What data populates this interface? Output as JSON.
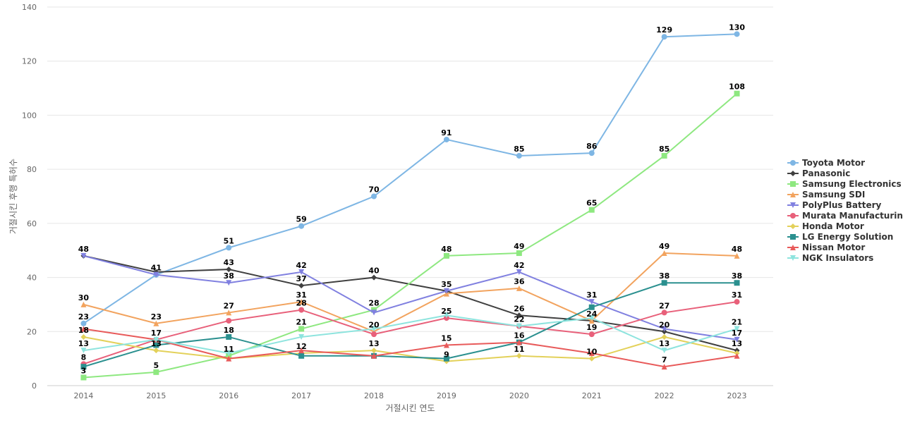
{
  "chart_data": {
    "type": "line",
    "title": "",
    "xlabel": "거절시킨 연도",
    "ylabel": "거절시킨 후행 특허수",
    "x": [
      "2014",
      "2015",
      "2016",
      "2017",
      "2018",
      "2019",
      "2020",
      "2021",
      "2022",
      "2023"
    ],
    "ylim": [
      0,
      140
    ],
    "yticks": [
      0,
      20,
      40,
      60,
      80,
      100,
      120,
      140
    ],
    "grid": true,
    "legend_position": "right",
    "series": [
      {
        "name": "Toyota Motor",
        "color": "#7eb6e4",
        "marker": "circle",
        "values": [
          23,
          41,
          51,
          59,
          70,
          91,
          85,
          86,
          129,
          130
        ]
      },
      {
        "name": "Panasonic",
        "color": "#404040",
        "marker": "diamond",
        "values": [
          48,
          42,
          43,
          37,
          40,
          35,
          26,
          24,
          20,
          13
        ]
      },
      {
        "name": "Samsung Electronics",
        "color": "#8ee880",
        "marker": "square",
        "values": [
          3,
          5,
          11,
          21,
          28,
          48,
          49,
          65,
          85,
          108
        ]
      },
      {
        "name": "Samsung SDI",
        "color": "#f2a35e",
        "marker": "triangle",
        "values": [
          30,
          23,
          27,
          31,
          20,
          34,
          36,
          24,
          49,
          48
        ]
      },
      {
        "name": "PolyPlus Battery",
        "color": "#8080e0",
        "marker": "triangle-down",
        "values": [
          48,
          41,
          38,
          42,
          27,
          35,
          42,
          31,
          21,
          17
        ]
      },
      {
        "name": "Murata Manufacturing",
        "color": "#e8607a",
        "marker": "circle",
        "values": [
          8,
          17,
          24,
          28,
          19,
          25,
          22,
          19,
          27,
          31
        ]
      },
      {
        "name": "Honda Motor",
        "color": "#e3d15a",
        "marker": "diamond",
        "values": [
          18,
          13,
          10,
          12,
          13,
          9,
          11,
          10,
          18,
          12
        ]
      },
      {
        "name": "LG Energy Solution",
        "color": "#2b908f",
        "marker": "square",
        "values": [
          7,
          15,
          18,
          11,
          11,
          10,
          16,
          29,
          38,
          38
        ]
      },
      {
        "name": "Nissan Motor",
        "color": "#e85a5a",
        "marker": "triangle",
        "values": [
          21,
          17,
          10,
          13,
          11,
          15,
          16,
          12,
          7,
          11
        ]
      },
      {
        "name": "NGK Insulators",
        "color": "#8ee4de",
        "marker": "triangle-down",
        "values": [
          13,
          17,
          12,
          18,
          21,
          26,
          22,
          25,
          13,
          21
        ]
      }
    ],
    "data_labels": [
      {
        "x": "2014",
        "texts": [
          "48",
          "30",
          "23",
          "18",
          "13",
          "8",
          "3"
        ]
      },
      {
        "x": "2015",
        "texts": [
          "41",
          "23",
          "17",
          "13",
          "5"
        ]
      },
      {
        "x": "2016",
        "texts": [
          "51",
          "43",
          "38",
          "27",
          "18",
          "11"
        ]
      },
      {
        "x": "2017",
        "texts": [
          "59",
          "42",
          "37",
          "31",
          "28",
          "21",
          "12"
        ]
      },
      {
        "x": "2018",
        "texts": [
          "70",
          "40",
          "28",
          "20",
          "13"
        ]
      },
      {
        "x": "2019",
        "texts": [
          "91",
          "48",
          "35",
          "25",
          "15",
          "9"
        ]
      },
      {
        "x": "2020",
        "texts": [
          "85",
          "49",
          "42",
          "36",
          "26",
          "22",
          "16",
          "11"
        ]
      },
      {
        "x": "2021",
        "texts": [
          "86",
          "65",
          "31",
          "24",
          "19",
          "10"
        ]
      },
      {
        "x": "2022",
        "texts": [
          "129",
          "85",
          "49",
          "38",
          "27",
          "20",
          "13",
          "7"
        ]
      },
      {
        "x": "2023",
        "texts": [
          "130",
          "108",
          "48",
          "38",
          "31",
          "21",
          "17",
          "13"
        ]
      }
    ]
  }
}
